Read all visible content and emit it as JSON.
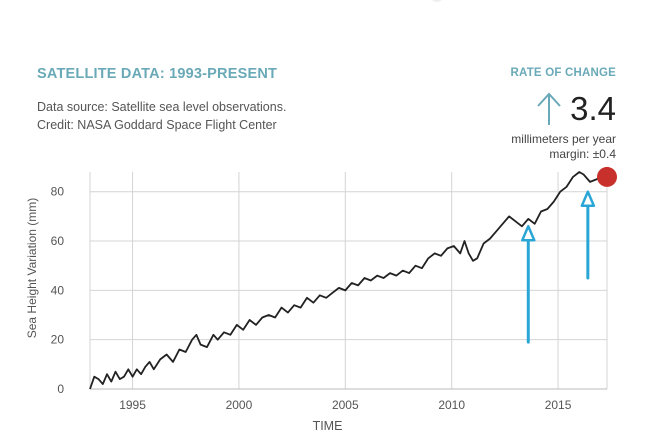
{
  "header": {
    "title": "SATELLITE DATA: 1993-PRESENT",
    "source_line1": "Data source: Satellite sea level observations.",
    "source_line2": "Credit: NASA Goddard Space Flight Center"
  },
  "rate": {
    "title": "RATE OF CHANGE",
    "arrow_icon": "up-arrow-icon",
    "value": "3.4",
    "unit": "millimeters per year",
    "margin": "margin: ±0.4"
  },
  "colors": {
    "accent": "#6aa9b7",
    "line": "#222222",
    "marker": "#c8302c",
    "annotation_arrow": "#2aa6d6",
    "grid": "#d4d4d4"
  },
  "chart_data": {
    "type": "line",
    "title": "",
    "xlabel": "TIME",
    "ylabel": "Sea Height Variation (mm)",
    "xlim": [
      1993,
      2017.3
    ],
    "ylim": [
      0,
      88
    ],
    "x_ticks": [
      1995,
      2000,
      2005,
      2010,
      2015
    ],
    "y_ticks": [
      0,
      20,
      40,
      60,
      80
    ],
    "grid": true,
    "series": [
      {
        "x": [
          1993.0,
          1993.2,
          1993.4,
          1993.6,
          1993.8,
          1994.0,
          1994.2,
          1994.4,
          1994.6,
          1994.8,
          1995.0,
          1995.2,
          1995.4,
          1995.6,
          1995.8,
          1996.0,
          1996.3,
          1996.6,
          1996.9,
          1997.2,
          1997.5,
          1997.8,
          1998.0,
          1998.2,
          1998.5,
          1998.8,
          1999.0,
          1999.3,
          1999.6,
          1999.9,
          2000.2,
          2000.5,
          2000.8,
          2001.1,
          2001.4,
          2001.7,
          2002.0,
          2002.3,
          2002.6,
          2002.9,
          2003.2,
          2003.5,
          2003.8,
          2004.1,
          2004.4,
          2004.7,
          2005.0,
          2005.3,
          2005.6,
          2005.9,
          2006.2,
          2006.5,
          2006.8,
          2007.1,
          2007.4,
          2007.7,
          2008.0,
          2008.3,
          2008.6,
          2008.9,
          2009.2,
          2009.5,
          2009.8,
          2010.1,
          2010.4,
          2010.6,
          2010.8,
          2011.0,
          2011.2,
          2011.5,
          2011.8,
          2012.1,
          2012.4,
          2012.7,
          2013.0,
          2013.3,
          2013.6,
          2013.9,
          2014.2,
          2014.5,
          2014.8,
          2015.1,
          2015.4,
          2015.7,
          2016.0,
          2016.2,
          2016.5,
          2016.8,
          2017.0
        ],
        "y": [
          0,
          5,
          4,
          2,
          6,
          3,
          7,
          4,
          5,
          8,
          5,
          8,
          6,
          9,
          11,
          8,
          12,
          14,
          11,
          16,
          15,
          20,
          22,
          18,
          17,
          22,
          20,
          23,
          22,
          26,
          24,
          28,
          26,
          29,
          30,
          29,
          33,
          31,
          34,
          33,
          37,
          35,
          38,
          37,
          39,
          41,
          40,
          43,
          42,
          45,
          44,
          46,
          45,
          47,
          46,
          48,
          47,
          50,
          49,
          53,
          55,
          54,
          57,
          58,
          55,
          60,
          55,
          52,
          53,
          59,
          61,
          64,
          67,
          70,
          68,
          66,
          69,
          67,
          72,
          73,
          76,
          80,
          82,
          86,
          88,
          87,
          84,
          85,
          86
        ]
      }
    ],
    "marker": {
      "x": 2017.3,
      "y": 86
    },
    "annotation_arrows": [
      {
        "x": 2013.6,
        "y_from": 19,
        "y_to": 66
      },
      {
        "x": 2016.4,
        "y_from": 45,
        "y_to": 80
      }
    ]
  }
}
